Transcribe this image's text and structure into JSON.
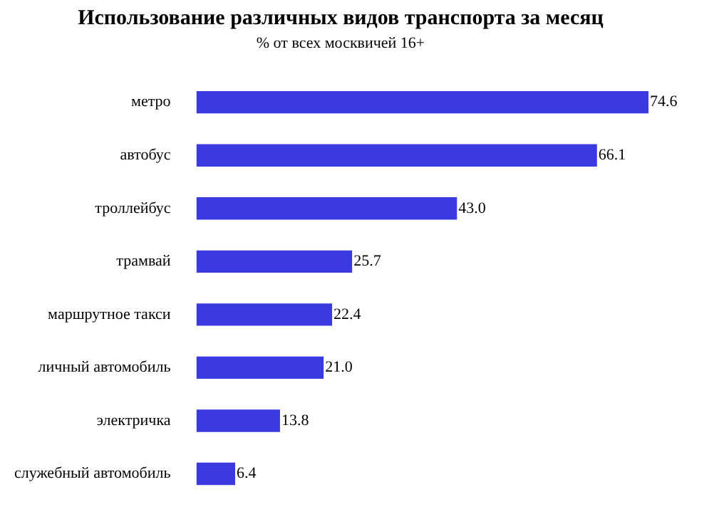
{
  "chart_data": {
    "type": "bar",
    "orientation": "horizontal",
    "title": "Использование различных видов транспорта за месяц",
    "subtitle": "% от всех москвичей 16+",
    "categories": [
      "метро",
      "автобус",
      "троллейбус",
      "трамвай",
      "маршрутное такси",
      "личный автомобиль",
      "электричка",
      "служебный автомобиль"
    ],
    "values": [
      74.6,
      66.1,
      43.0,
      25.7,
      22.4,
      21.0,
      13.8,
      6.4
    ],
    "value_labels": [
      "74.6",
      "66.1",
      "43.0",
      "25.7",
      "22.4",
      "21.0",
      "13.8",
      "6.4"
    ],
    "color": "#3a3ae0"
  }
}
